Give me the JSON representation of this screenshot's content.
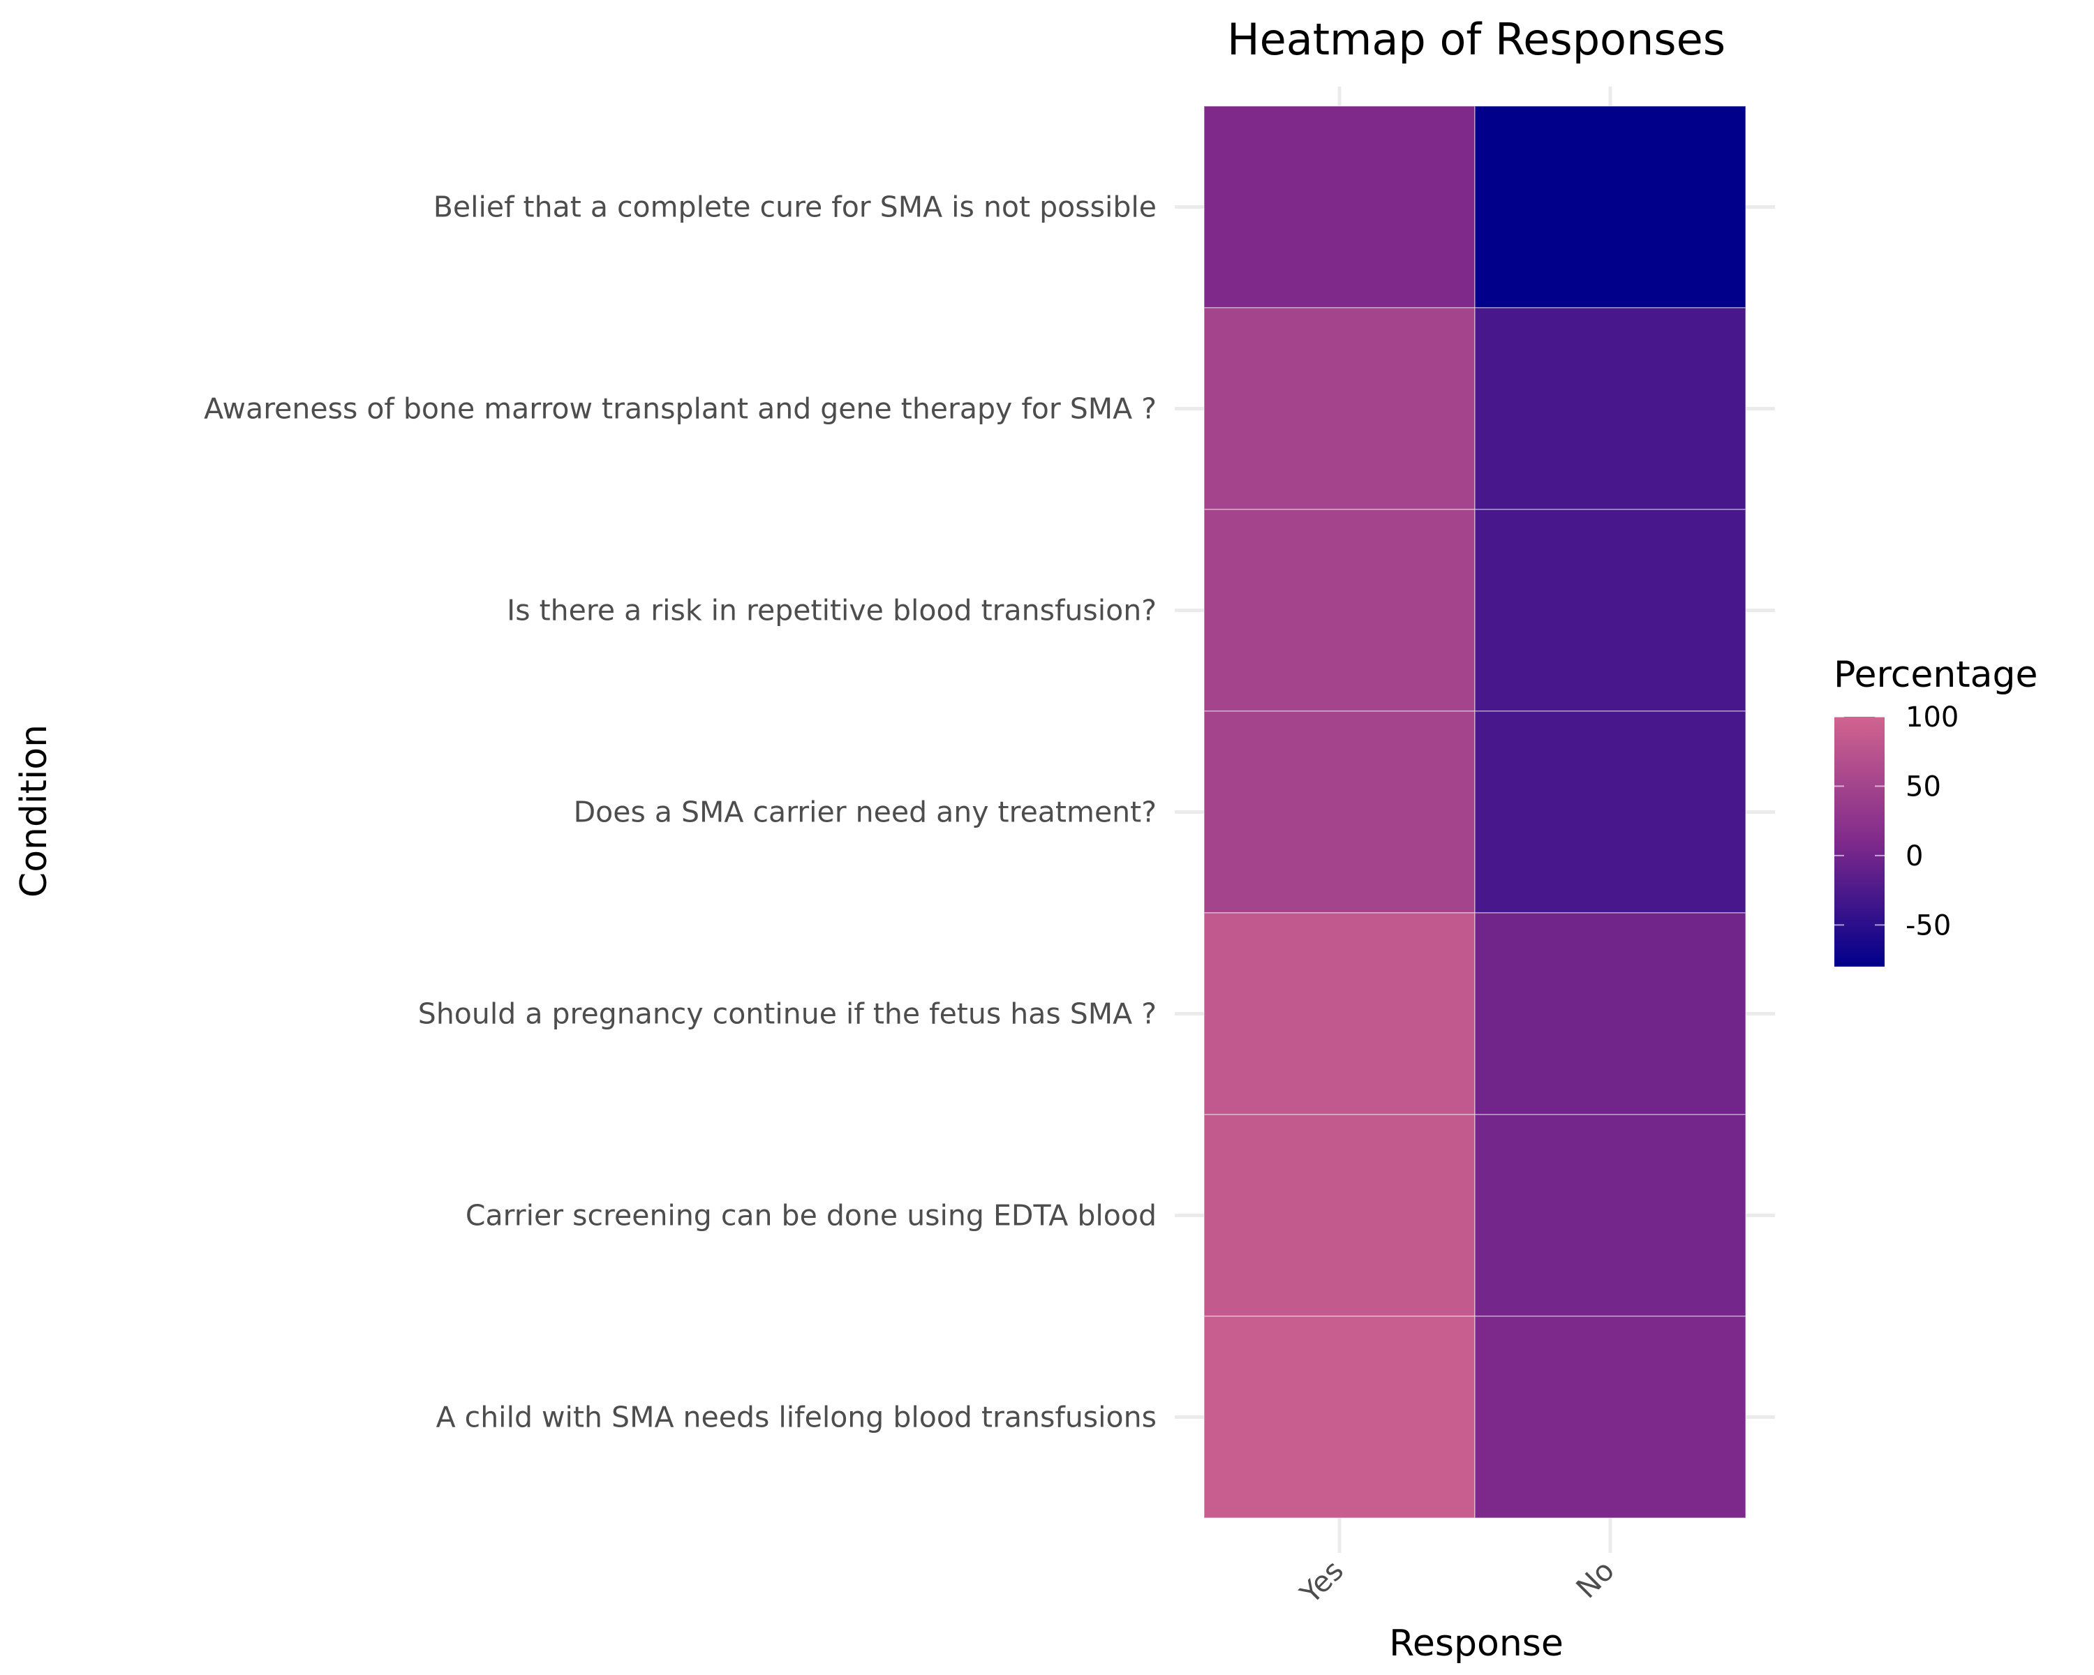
{
  "chart_data": {
    "type": "heatmap",
    "title": "Heatmap of Responses",
    "xlabel": "Response",
    "ylabel": "Condition",
    "x_categories": [
      "Yes",
      "No"
    ],
    "y_categories": [
      "Belief that a complete cure for SMA  is not possible",
      "Awareness of bone marrow transplant and gene therapy for SMA ?",
      "Is there a risk in repetitive blood transfusion?",
      "Does a SMA carrier need any treatment?",
      "Should a pregnancy continue if the fetus has SMA ?",
      "Carrier screening can be done using EDTA blood",
      "A child with SMA  needs lifelong blood transfusions"
    ],
    "values": [
      [
        10,
        -80
      ],
      [
        50,
        -30
      ],
      [
        50,
        -30
      ],
      [
        50,
        -30
      ],
      [
        82,
        0
      ],
      [
        84,
        2
      ],
      [
        90,
        8
      ]
    ],
    "legend": {
      "title": "Percentage",
      "placement": "right",
      "range": [
        -80,
        100
      ],
      "ticks": [
        "100",
        "50",
        "0",
        "-50"
      ],
      "low_color": "#00008b",
      "mid_color": "#7f2a8b",
      "high_color": "#d1648f"
    },
    "grid": true
  }
}
